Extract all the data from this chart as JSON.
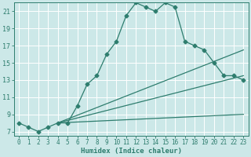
{
  "xlabel": "Humidex (Indice chaleur)",
  "bg_color": "#cce8e8",
  "grid_color": "#ffffff",
  "line_color": "#2e7d6e",
  "xlim": [
    -0.5,
    23.5
  ],
  "ylim": [
    6.5,
    22.0
  ],
  "xticks": [
    0,
    1,
    2,
    3,
    4,
    5,
    6,
    7,
    8,
    9,
    10,
    11,
    12,
    13,
    14,
    15,
    16,
    17,
    18,
    19,
    20,
    21,
    22,
    23
  ],
  "yticks": [
    7,
    9,
    11,
    13,
    15,
    17,
    19,
    21
  ],
  "series1_x": [
    0,
    1,
    2,
    3,
    4,
    5,
    6,
    7,
    8,
    9,
    10,
    11,
    12,
    13,
    14,
    15,
    16,
    17,
    18,
    19,
    20,
    21,
    22,
    23
  ],
  "series1_y": [
    8.0,
    7.5,
    7.0,
    7.5,
    8.0,
    8.0,
    10.0,
    12.5,
    13.5,
    16.0,
    17.5,
    20.5,
    22.0,
    21.5,
    21.0,
    22.0,
    21.5,
    17.5,
    17.0,
    16.5,
    15.0,
    13.5,
    13.5,
    13.0
  ],
  "line2_x0": 4,
  "line2_x1": 23,
  "line2_y0": 8.0,
  "line2_y1": 16.5,
  "line3_x0": 4,
  "line3_x1": 23,
  "line3_y0": 8.0,
  "line3_y1": 13.5,
  "line4_x0": 4,
  "line4_x1": 23,
  "line4_y0": 8.0,
  "line4_y1": 9.0,
  "markersize": 2.5,
  "linewidth": 0.9,
  "tick_fontsize": 5.5,
  "xlabel_fontsize": 6.5
}
